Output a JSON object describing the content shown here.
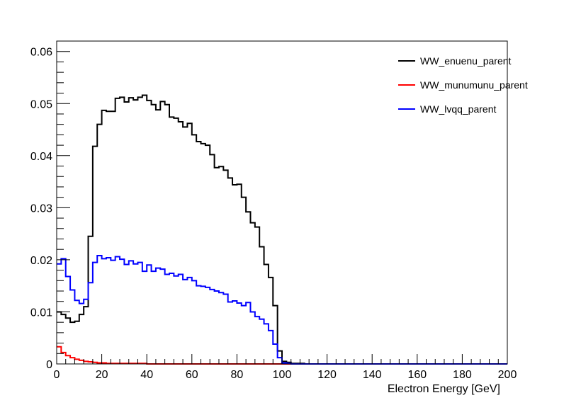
{
  "chart_data": {
    "type": "line",
    "title": "",
    "xlabel": "Electron Energy [GeV]",
    "ylabel": "",
    "xlim": [
      0,
      200
    ],
    "ylim": [
      0,
      0.062
    ],
    "x_ticks": [
      0,
      20,
      40,
      60,
      80,
      100,
      120,
      140,
      160,
      180,
      200
    ],
    "y_ticks": [
      0,
      0.01,
      0.02,
      0.03,
      0.04,
      0.05,
      0.06
    ],
    "x_tick_labels": [
      "0",
      "20",
      "40",
      "60",
      "80",
      "100",
      "120",
      "140",
      "160",
      "180",
      "200"
    ],
    "y_tick_labels": [
      "0",
      "0.01",
      "0.02",
      "0.03",
      "0.04",
      "0.05",
      "0.06"
    ],
    "grid": false,
    "legend_position": "top-right",
    "bin_width": 2,
    "series": [
      {
        "name": "WW_enuenu_parent",
        "color": "#000000",
        "values": [
          0.01,
          0.0095,
          0.0088,
          0.008,
          0.0082,
          0.0095,
          0.011,
          0.0245,
          0.0418,
          0.046,
          0.0487,
          0.0485,
          0.0485,
          0.051,
          0.0512,
          0.0503,
          0.0511,
          0.0507,
          0.0512,
          0.0516,
          0.0506,
          0.0498,
          0.0488,
          0.0504,
          0.0498,
          0.0474,
          0.0472,
          0.0465,
          0.0455,
          0.0462,
          0.044,
          0.0427,
          0.0423,
          0.042,
          0.0402,
          0.0377,
          0.0379,
          0.0372,
          0.0357,
          0.0344,
          0.0345,
          0.032,
          0.0292,
          0.0271,
          0.0263,
          0.0225,
          0.0191,
          0.0166,
          0.0112,
          0.0025,
          0.0005,
          0.0003,
          0.0001,
          0.0001,
          0.0001,
          0,
          0,
          0,
          0,
          0,
          0,
          0,
          0,
          0,
          0,
          0,
          0,
          0,
          0,
          0,
          0,
          0,
          0,
          0,
          0,
          0,
          0,
          0,
          0,
          0,
          0,
          0,
          0,
          0,
          0,
          0,
          0,
          0,
          0,
          0,
          0,
          0,
          0,
          0,
          0,
          0,
          0,
          0,
          0,
          0
        ]
      },
      {
        "name": "WW_munumunu_parent",
        "color": "#ff0000",
        "values": [
          0.0033,
          0.0022,
          0.0016,
          0.0012,
          0.0009,
          0.0007,
          0.0005,
          0.0004,
          0.0003,
          0.0002,
          0.0002,
          0.0001,
          0.0001,
          0.0001,
          0.0001,
          0.0001,
          0.0001,
          0.0001,
          0.0001,
          0.0001,
          0,
          0,
          0,
          0,
          0,
          0,
          0,
          0,
          0,
          0,
          0,
          0,
          0,
          0,
          0,
          0,
          0,
          0,
          0,
          0,
          0,
          0,
          0,
          0,
          0,
          0,
          0,
          0,
          0,
          0,
          0,
          0,
          0,
          0,
          0,
          0,
          0,
          0,
          0,
          0,
          0,
          0,
          0,
          0,
          0,
          0,
          0,
          0,
          0,
          0,
          0,
          0,
          0,
          0,
          0,
          0,
          0,
          0,
          0,
          0,
          0,
          0,
          0,
          0,
          0,
          0,
          0,
          0,
          0,
          0,
          0,
          0,
          0,
          0,
          0,
          0,
          0,
          0,
          0,
          0
        ]
      },
      {
        "name": "WW_lvqq_parent",
        "color": "#0000ff",
        "values": [
          0.0192,
          0.0202,
          0.0168,
          0.0142,
          0.0122,
          0.0116,
          0.0124,
          0.0156,
          0.0195,
          0.0208,
          0.0202,
          0.0204,
          0.0199,
          0.0206,
          0.0201,
          0.0191,
          0.0198,
          0.0192,
          0.0195,
          0.0178,
          0.019,
          0.0178,
          0.0184,
          0.0182,
          0.0172,
          0.0174,
          0.0169,
          0.0172,
          0.0162,
          0.0166,
          0.016,
          0.015,
          0.0149,
          0.0147,
          0.0143,
          0.014,
          0.0137,
          0.0134,
          0.0119,
          0.0121,
          0.0117,
          0.0112,
          0.0118,
          0.01,
          0.0091,
          0.0086,
          0.0077,
          0.0064,
          0.0038,
          0.0012,
          0.0002,
          0.0001,
          0,
          0,
          0,
          0,
          0,
          0,
          0,
          0,
          0,
          0,
          0,
          0,
          0,
          0,
          0,
          0,
          0,
          0,
          0,
          0,
          0,
          0,
          0,
          0,
          0,
          0,
          0,
          0,
          0,
          0,
          0,
          0,
          0,
          0,
          0,
          0,
          0,
          0,
          0,
          0,
          0,
          0,
          0,
          0,
          0,
          0,
          0,
          0
        ]
      }
    ]
  }
}
